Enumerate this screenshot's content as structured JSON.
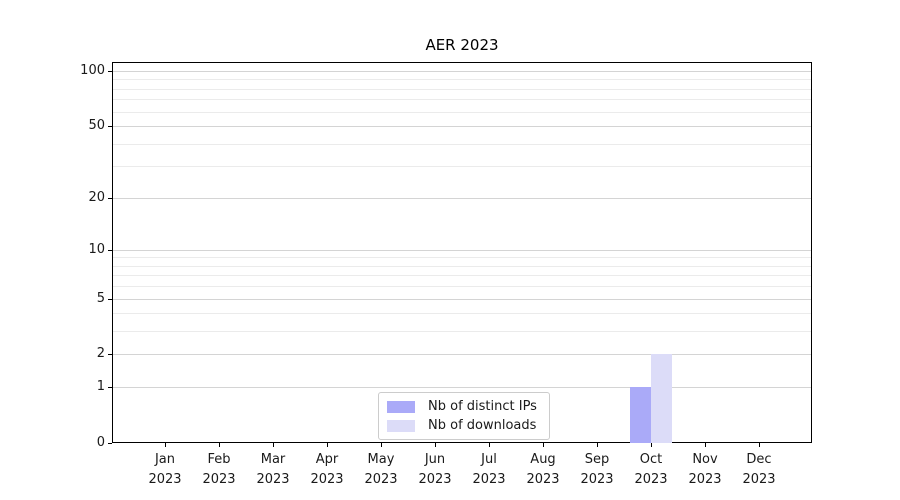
{
  "chart_data": {
    "type": "bar",
    "title": "AER 2023",
    "year_label": "2023",
    "months": [
      "Jan",
      "Feb",
      "Mar",
      "Apr",
      "May",
      "Jun",
      "Jul",
      "Aug",
      "Sep",
      "Oct",
      "Nov",
      "Dec"
    ],
    "series": [
      {
        "id": "distinct-ips",
        "name": "Nb of distinct IPs",
        "color": "#aaaaf8",
        "values": [
          0,
          0,
          0,
          0,
          0,
          0,
          0,
          0,
          0,
          1,
          0,
          0
        ]
      },
      {
        "id": "downloads",
        "name": "Nb of downloads",
        "color": "#dcdcf8",
        "values": [
          0,
          0,
          0,
          0,
          0,
          0,
          0,
          0,
          0,
          2,
          0,
          0
        ]
      }
    ],
    "yscale": "log1p",
    "ylim": [
      0,
      112
    ],
    "y_major_ticks": [
      100,
      50,
      20,
      10,
      5,
      2,
      1,
      0
    ],
    "y_minor_ticks": [
      3,
      4,
      6,
      7,
      8,
      9,
      30,
      40,
      60,
      70,
      80,
      90
    ],
    "grid": true,
    "legend_position": "lower center"
  },
  "colors": {
    "major_grid": "#d4d4d4",
    "minor_grid": "#ebebeb",
    "spine": "#000000",
    "legend_border": "#cccccc"
  }
}
